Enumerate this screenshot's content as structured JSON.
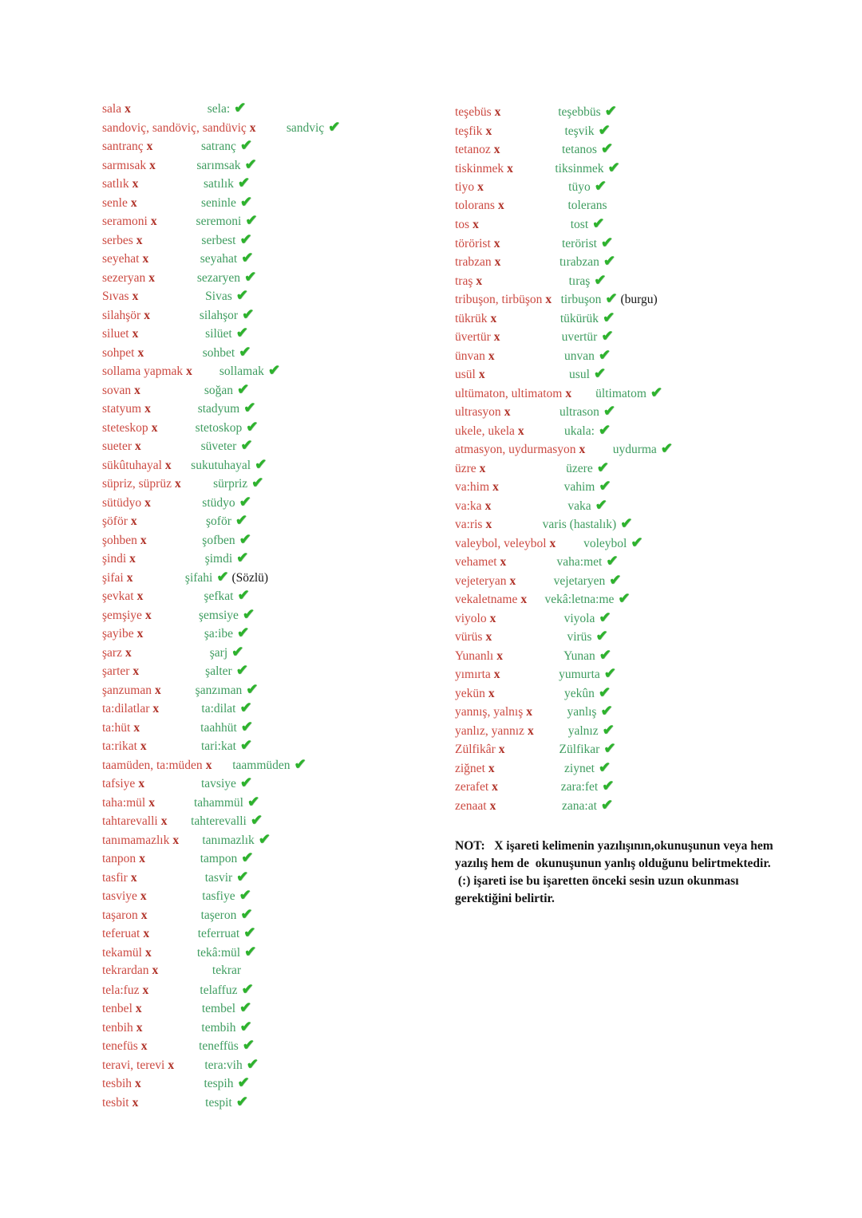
{
  "colors": {
    "wrong_word_red": "#cc4a42",
    "x_mark_red": "#b03228",
    "correct_word_green": "#3f9d60",
    "checkmark_green": "#2db32d",
    "note_black": "#131313",
    "page_background": "#ffffff"
  },
  "marks": {
    "wrong_mark": "x",
    "check_mark": "✔"
  },
  "columns": {
    "left": {
      "pairs": [
        {
          "wrong": "sala",
          "correct": "sela:",
          "check": true
        },
        {
          "wrong": "sandoviç, sandöviç, sandüviç",
          "correct": "sandviç",
          "check": true
        },
        {
          "wrong": "santranç",
          "correct": "satranç",
          "check": true
        },
        {
          "wrong": "sarmısak",
          "correct": "sarımsak",
          "check": true
        },
        {
          "wrong": "satlık",
          "correct": "satılık",
          "check": true
        },
        {
          "wrong": "senle",
          "correct": "seninle",
          "check": true
        },
        {
          "wrong": "seramoni",
          "correct": "seremoni",
          "check": true
        },
        {
          "wrong": "serbes",
          "correct": "serbest",
          "check": true
        },
        {
          "wrong": "seyehat",
          "correct": "seyahat",
          "check": true
        },
        {
          "wrong": "sezeryan",
          "correct": "sezaryen",
          "check": true
        },
        {
          "wrong": "Sıvas",
          "correct": "Sivas",
          "check": true
        },
        {
          "wrong": "silahşör",
          "correct": "silahşor",
          "check": true
        },
        {
          "wrong": "siluet",
          "correct": "silüet",
          "check": true
        },
        {
          "wrong": "sohpet",
          "correct": "sohbet",
          "check": true
        },
        {
          "wrong": "sollama yapmak",
          "correct": "sollamak",
          "check": true
        },
        {
          "wrong": "sovan",
          "correct": "soğan",
          "check": true
        },
        {
          "wrong": "statyum",
          "correct": "stadyum",
          "check": true
        },
        {
          "wrong": "steteskop",
          "correct": "stetoskop",
          "check": true
        },
        {
          "wrong": "sueter",
          "correct": "süveter",
          "check": true
        },
        {
          "wrong": "sükûtuhayal",
          "correct": "sukutuhayal",
          "check": true
        },
        {
          "wrong": "süpriz, süprüz",
          "correct": "sürpriz",
          "check": true
        },
        {
          "wrong": "sütüdyo",
          "correct": "stüdyo",
          "check": true
        },
        {
          "wrong": "şöför",
          "correct": "şoför",
          "check": true
        },
        {
          "wrong": "şohben",
          "correct": "şofben",
          "check": true
        },
        {
          "wrong": "şindi",
          "correct": "şimdi",
          "check": true
        },
        {
          "wrong": "şifai",
          "correct": "şifahi",
          "check": true,
          "note": "(Sözlü)"
        },
        {
          "wrong": "şevkat",
          "correct": "şefkat",
          "check": true
        },
        {
          "wrong": "şemşiye",
          "correct": "şemsiye",
          "check": true
        },
        {
          "wrong": "şayibe",
          "correct": "şa:ibe",
          "check": true
        },
        {
          "wrong": "şarz",
          "correct": "şarj",
          "check": true
        },
        {
          "wrong": "şarter",
          "correct": "şalter",
          "check": true
        },
        {
          "wrong": "şanzuman",
          "correct": "şanzıman",
          "check": true
        },
        {
          "wrong": "ta:dilatlar",
          "correct": "ta:dilat",
          "check": true
        },
        {
          "wrong": "ta:hüt",
          "correct": "taahhüt",
          "check": true
        },
        {
          "wrong": "ta:rikat",
          "correct": "tari:kat",
          "check": true
        },
        {
          "wrong": "taamüden, ta:müden",
          "correct": "taammüden",
          "check": true
        },
        {
          "wrong": "tafsiye",
          "correct": "tavsiye",
          "check": true
        },
        {
          "wrong": "taha:mül",
          "correct": "tahammül",
          "check": true
        },
        {
          "wrong": "tahtarevalli",
          "correct": "tahterevalli",
          "check": true
        },
        {
          "wrong": "tanımamazlık",
          "correct": "tanımazlık",
          "check": true
        },
        {
          "wrong": "tanpon",
          "correct": "tampon",
          "check": true
        },
        {
          "wrong": "tasfir",
          "correct": "tasvir",
          "check": true
        },
        {
          "wrong": "tasviye",
          "correct": "tasfiye",
          "check": true
        },
        {
          "wrong": "taşaron",
          "correct": "taşeron",
          "check": true
        },
        {
          "wrong": "teferuat",
          "correct": "teferruat",
          "check": true
        },
        {
          "wrong": "tekamül",
          "correct": "tekâ:mül",
          "check": true
        },
        {
          "wrong": "tekrardan",
          "correct": "tekrar",
          "check": false
        },
        {
          "wrong": "tela:fuz",
          "correct": "telaffuz",
          "check": true
        },
        {
          "wrong": "tenbel",
          "correct": "tembel",
          "check": true
        },
        {
          "wrong": "tenbih",
          "correct": "tembih",
          "check": true
        },
        {
          "wrong": "tenefüs",
          "correct": "teneffüs",
          "check": true
        },
        {
          "wrong": "teravi, terevi",
          "correct": "tera:vih",
          "check": true
        },
        {
          "wrong": "tesbih",
          "correct": "tespih",
          "check": true
        },
        {
          "wrong": "tesbit",
          "correct": "tespit",
          "check": true
        }
      ]
    },
    "right": {
      "pairs": [
        {
          "wrong": "teşebüs",
          "correct": "teşebbüs",
          "check": true
        },
        {
          "wrong": "teşfik",
          "correct": "teşvik",
          "check": true
        },
        {
          "wrong": "tetanoz",
          "correct": "tetanos",
          "check": true
        },
        {
          "wrong": "tiskinmek",
          "correct": "tiksinmek",
          "check": true
        },
        {
          "wrong": "tiyo",
          "correct": "tüyo",
          "check": true
        },
        {
          "wrong": "tolorans",
          "correct": "tolerans",
          "check": false
        },
        {
          "wrong": "tos",
          "correct": "tost",
          "check": true
        },
        {
          "wrong": "törörist",
          "correct": "terörist",
          "check": true
        },
        {
          "wrong": "trabzan",
          "correct": "tırabzan",
          "check": true
        },
        {
          "wrong": "traş",
          "correct": "tıraş",
          "check": true
        },
        {
          "wrong": "tribuşon, tirbüşon",
          "correct": "tirbuşon",
          "check": true,
          "note": "(burgu)"
        },
        {
          "wrong": "tükrük",
          "correct": "tükürük",
          "check": true
        },
        {
          "wrong": "üvertür",
          "correct": "uvertür",
          "check": true
        },
        {
          "wrong": "ünvan",
          "correct": "unvan",
          "check": true
        },
        {
          "wrong": "usül",
          "correct": "usul",
          "check": true
        },
        {
          "wrong": "ultümaton, ultimatom",
          "correct": "ültimatom",
          "check": true
        },
        {
          "wrong": "ultrasyon",
          "correct": "ultrason",
          "check": true
        },
        {
          "wrong": "ukele, ukela",
          "correct": "ukala:",
          "check": true
        },
        {
          "wrong": "atmasyon, uydurmasyon",
          "correct": "uydurma",
          "check": true
        },
        {
          "wrong": "üzre",
          "correct": "üzere",
          "check": true
        },
        {
          "wrong": "va:him",
          "correct": "vahim",
          "check": true
        },
        {
          "wrong": "va:ka",
          "correct": "vaka",
          "check": true
        },
        {
          "wrong": "va:ris",
          "correct": "varis (hastalık)",
          "check": true
        },
        {
          "wrong": "valeybol, veleybol",
          "correct": "voleybol",
          "check": true
        },
        {
          "wrong": "vehamet",
          "correct": "vaha:met",
          "check": true
        },
        {
          "wrong": "vejeteryan",
          "correct": "vejetaryen",
          "check": true
        },
        {
          "wrong": "vekaletname",
          "correct": "vekâ:letna:me",
          "check": true
        },
        {
          "wrong": "viyolo",
          "correct": "viyola",
          "check": true
        },
        {
          "wrong": "vürüs",
          "correct": "virüs",
          "check": true
        },
        {
          "wrong": "Yunanlı",
          "correct": "Yunan",
          "check": true
        },
        {
          "wrong": "yımırta",
          "correct": "yumurta",
          "check": true
        },
        {
          "wrong": "yekün",
          "correct": "yekûn",
          "check": true
        },
        {
          "wrong": "yannış, yalnış",
          "correct": "yanlış",
          "check": true
        },
        {
          "wrong": "yanlız, yannız",
          "correct": "yalnız",
          "check": true
        },
        {
          "wrong": "Zülfikâr",
          "correct": "Zülfikar",
          "check": true
        },
        {
          "wrong": "ziğnet",
          "correct": "ziynet",
          "check": true
        },
        {
          "wrong": "zerafet",
          "correct": "zara:fet",
          "check": true
        },
        {
          "wrong": "zenaat",
          "correct": "zana:at",
          "check": true
        }
      ],
      "note_lines": [
        "NOT:   X işareti kelimenin yazılışının,okunuşunun veya hem",
        "yazılış hem de  okunuşunun yanlış olduğunu belirtmektedir.",
        " (:) işareti ise bu işaretten önceki sesin uzun okunması",
        "gerektiğini belirtir."
      ]
    }
  }
}
